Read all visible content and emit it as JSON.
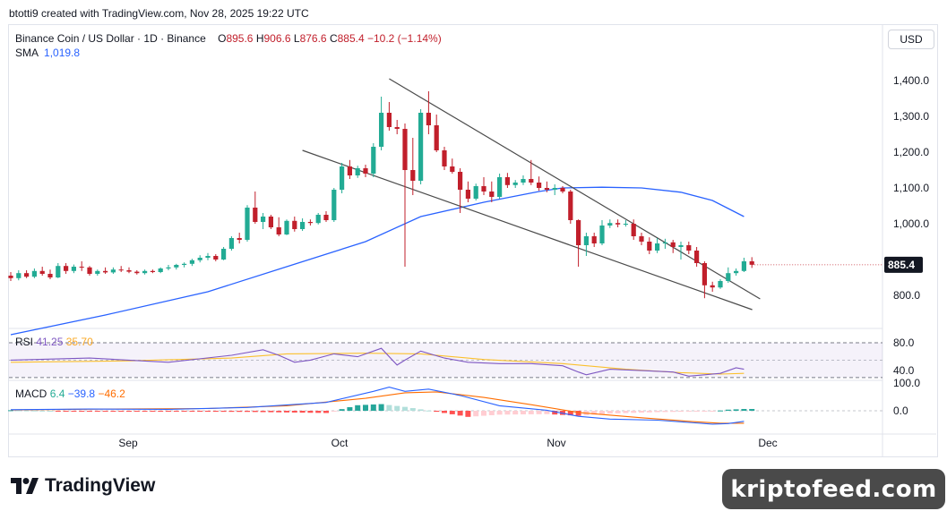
{
  "caption": "btotti9 created with TradingView.com, Nov 28, 2025 19:22 UTC",
  "legend": {
    "symbol": "Binance Coin / US Dollar · 1D · Binance",
    "o_label": "O",
    "o": "895.6",
    "h_label": "H",
    "h": "906.6",
    "l_label": "L",
    "l": "876.6",
    "c_label": "C",
    "c": "885.4",
    "change": "−10.2 (−1.14%)",
    "sma_label": "SMA",
    "sma": "1,019.8"
  },
  "currency": "USD",
  "price_tag": "885.4",
  "rsi_legend": {
    "label": "RSI",
    "rsi": "41.25",
    "ma": "35.70"
  },
  "macd_legend": {
    "label": "MACD",
    "hist": "6.4",
    "macd": "−39.8",
    "signal": "−46.2"
  },
  "brand": "TradingView",
  "watermark": "kriptofeed.com",
  "colors": {
    "up": "#22ab94",
    "down": "#c11f2b",
    "sma": "#2962ff",
    "rsi": "#7e57c2",
    "rsi_ma": "#fbc02d",
    "macd": "#2962ff",
    "signal": "#ff6d00",
    "trendline": "#4a4a4a"
  },
  "chart_data": {
    "type": "candlestick",
    "xaxis_labels": [
      "Sep",
      "Oct",
      "Nov",
      "Dec"
    ],
    "price_ticks": [
      1400,
      1300,
      1200,
      1100,
      1000,
      800
    ],
    "ylim": [
      745,
      1480
    ],
    "rsi_ticks": [
      80,
      40
    ],
    "macd_ticks": [
      100,
      0
    ],
    "candles": [
      {
        "o": 855,
        "h": 865,
        "l": 840,
        "c": 848
      },
      {
        "o": 848,
        "h": 870,
        "l": 842,
        "c": 862
      },
      {
        "o": 862,
        "h": 870,
        "l": 848,
        "c": 852
      },
      {
        "o": 852,
        "h": 875,
        "l": 848,
        "c": 868
      },
      {
        "o": 868,
        "h": 880,
        "l": 855,
        "c": 860
      },
      {
        "o": 860,
        "h": 872,
        "l": 845,
        "c": 850
      },
      {
        "o": 850,
        "h": 890,
        "l": 848,
        "c": 882
      },
      {
        "o": 882,
        "h": 890,
        "l": 860,
        "c": 868
      },
      {
        "o": 868,
        "h": 886,
        "l": 862,
        "c": 880
      },
      {
        "o": 880,
        "h": 895,
        "l": 868,
        "c": 878
      },
      {
        "o": 878,
        "h": 882,
        "l": 855,
        "c": 860
      },
      {
        "o": 860,
        "h": 872,
        "l": 855,
        "c": 868
      },
      {
        "o": 868,
        "h": 878,
        "l": 860,
        "c": 864
      },
      {
        "o": 864,
        "h": 878,
        "l": 860,
        "c": 872
      },
      {
        "o": 872,
        "h": 882,
        "l": 865,
        "c": 870
      },
      {
        "o": 870,
        "h": 878,
        "l": 862,
        "c": 866
      },
      {
        "o": 866,
        "h": 870,
        "l": 858,
        "c": 862
      },
      {
        "o": 862,
        "h": 872,
        "l": 858,
        "c": 868
      },
      {
        "o": 868,
        "h": 872,
        "l": 862,
        "c": 865
      },
      {
        "o": 865,
        "h": 878,
        "l": 862,
        "c": 875
      },
      {
        "o": 875,
        "h": 885,
        "l": 870,
        "c": 878
      },
      {
        "o": 878,
        "h": 888,
        "l": 872,
        "c": 885
      },
      {
        "o": 885,
        "h": 892,
        "l": 878,
        "c": 888
      },
      {
        "o": 888,
        "h": 902,
        "l": 882,
        "c": 898
      },
      {
        "o": 898,
        "h": 912,
        "l": 892,
        "c": 905
      },
      {
        "o": 905,
        "h": 918,
        "l": 898,
        "c": 910
      },
      {
        "o": 910,
        "h": 915,
        "l": 895,
        "c": 900
      },
      {
        "o": 900,
        "h": 935,
        "l": 898,
        "c": 930
      },
      {
        "o": 930,
        "h": 965,
        "l": 925,
        "c": 960
      },
      {
        "o": 960,
        "h": 975,
        "l": 945,
        "c": 955
      },
      {
        "o": 955,
        "h": 1052,
        "l": 950,
        "c": 1045
      },
      {
        "o": 1045,
        "h": 1090,
        "l": 1000,
        "c": 1005
      },
      {
        "o": 1005,
        "h": 1030,
        "l": 985,
        "c": 1020
      },
      {
        "o": 1020,
        "h": 1025,
        "l": 985,
        "c": 990
      },
      {
        "o": 990,
        "h": 1018,
        "l": 965,
        "c": 970
      },
      {
        "o": 970,
        "h": 1012,
        "l": 968,
        "c": 1008
      },
      {
        "o": 1008,
        "h": 1020,
        "l": 978,
        "c": 985
      },
      {
        "o": 985,
        "h": 1015,
        "l": 980,
        "c": 1005
      },
      {
        "o": 1005,
        "h": 1012,
        "l": 995,
        "c": 1002
      },
      {
        "o": 1002,
        "h": 1030,
        "l": 998,
        "c": 1025
      },
      {
        "o": 1025,
        "h": 1035,
        "l": 1005,
        "c": 1010
      },
      {
        "o": 1010,
        "h": 1100,
        "l": 1005,
        "c": 1095
      },
      {
        "o": 1095,
        "h": 1170,
        "l": 1085,
        "c": 1160
      },
      {
        "o": 1160,
        "h": 1178,
        "l": 1125,
        "c": 1135
      },
      {
        "o": 1135,
        "h": 1162,
        "l": 1128,
        "c": 1155
      },
      {
        "o": 1155,
        "h": 1165,
        "l": 1130,
        "c": 1140
      },
      {
        "o": 1140,
        "h": 1225,
        "l": 1130,
        "c": 1215
      },
      {
        "o": 1215,
        "h": 1355,
        "l": 1205,
        "c": 1310
      },
      {
        "o": 1310,
        "h": 1340,
        "l": 1260,
        "c": 1270
      },
      {
        "o": 1270,
        "h": 1290,
        "l": 1250,
        "c": 1265
      },
      {
        "o": 1265,
        "h": 1280,
        "l": 880,
        "c": 1150
      },
      {
        "o": 1150,
        "h": 1240,
        "l": 1080,
        "c": 1120
      },
      {
        "o": 1120,
        "h": 1320,
        "l": 1110,
        "c": 1310
      },
      {
        "o": 1310,
        "h": 1370,
        "l": 1250,
        "c": 1275
      },
      {
        "o": 1275,
        "h": 1305,
        "l": 1200,
        "c": 1205
      },
      {
        "o": 1205,
        "h": 1215,
        "l": 1150,
        "c": 1160
      },
      {
        "o": 1160,
        "h": 1182,
        "l": 1140,
        "c": 1145
      },
      {
        "o": 1145,
        "h": 1155,
        "l": 1030,
        "c": 1095
      },
      {
        "o": 1095,
        "h": 1118,
        "l": 1060,
        "c": 1070
      },
      {
        "o": 1070,
        "h": 1112,
        "l": 1065,
        "c": 1105
      },
      {
        "o": 1105,
        "h": 1130,
        "l": 1080,
        "c": 1090
      },
      {
        "o": 1090,
        "h": 1118,
        "l": 1060,
        "c": 1075
      },
      {
        "o": 1075,
        "h": 1140,
        "l": 1070,
        "c": 1130
      },
      {
        "o": 1130,
        "h": 1142,
        "l": 1100,
        "c": 1108
      },
      {
        "o": 1108,
        "h": 1122,
        "l": 1100,
        "c": 1115
      },
      {
        "o": 1115,
        "h": 1135,
        "l": 1108,
        "c": 1125
      },
      {
        "o": 1125,
        "h": 1178,
        "l": 1108,
        "c": 1115
      },
      {
        "o": 1115,
        "h": 1132,
        "l": 1092,
        "c": 1100
      },
      {
        "o": 1100,
        "h": 1118,
        "l": 1088,
        "c": 1095
      },
      {
        "o": 1095,
        "h": 1110,
        "l": 1080,
        "c": 1100
      },
      {
        "o": 1100,
        "h": 1105,
        "l": 1085,
        "c": 1090
      },
      {
        "o": 1090,
        "h": 1095,
        "l": 1000,
        "c": 1010
      },
      {
        "o": 1010,
        "h": 1012,
        "l": 880,
        "c": 940
      },
      {
        "o": 940,
        "h": 975,
        "l": 910,
        "c": 965
      },
      {
        "o": 965,
        "h": 975,
        "l": 935,
        "c": 945
      },
      {
        "o": 945,
        "h": 1010,
        "l": 940,
        "c": 995
      },
      {
        "o": 995,
        "h": 1012,
        "l": 988,
        "c": 1002
      },
      {
        "o": 1002,
        "h": 1012,
        "l": 990,
        "c": 998
      },
      {
        "o": 998,
        "h": 1010,
        "l": 992,
        "c": 1000
      },
      {
        "o": 1000,
        "h": 1012,
        "l": 955,
        "c": 965
      },
      {
        "o": 965,
        "h": 975,
        "l": 940,
        "c": 950
      },
      {
        "o": 950,
        "h": 962,
        "l": 915,
        "c": 925
      },
      {
        "o": 925,
        "h": 960,
        "l": 918,
        "c": 945
      },
      {
        "o": 945,
        "h": 958,
        "l": 930,
        "c": 948
      },
      {
        "o": 948,
        "h": 955,
        "l": 918,
        "c": 935
      },
      {
        "o": 935,
        "h": 950,
        "l": 900,
        "c": 940
      },
      {
        "o": 940,
        "h": 950,
        "l": 915,
        "c": 925
      },
      {
        "o": 925,
        "h": 935,
        "l": 880,
        "c": 890
      },
      {
        "o": 890,
        "h": 895,
        "l": 792,
        "c": 828
      },
      {
        "o": 828,
        "h": 838,
        "l": 810,
        "c": 822
      },
      {
        "o": 822,
        "h": 845,
        "l": 818,
        "c": 840
      },
      {
        "o": 840,
        "h": 878,
        "l": 835,
        "c": 862
      },
      {
        "o": 862,
        "h": 875,
        "l": 855,
        "c": 868
      },
      {
        "o": 868,
        "h": 905,
        "l": 865,
        "c": 895
      },
      {
        "o": 895,
        "h": 906.6,
        "l": 876.6,
        "c": 885.4
      }
    ],
    "sma": [
      {
        "i": 0,
        "v": 690
      },
      {
        "i": 12,
        "v": 745
      },
      {
        "i": 25,
        "v": 810
      },
      {
        "i": 35,
        "v": 880
      },
      {
        "i": 45,
        "v": 950
      },
      {
        "i": 52,
        "v": 1020
      },
      {
        "i": 60,
        "v": 1060
      },
      {
        "i": 67,
        "v": 1090
      },
      {
        "i": 70,
        "v": 1100
      },
      {
        "i": 75,
        "v": 1102
      },
      {
        "i": 80,
        "v": 1100
      },
      {
        "i": 85,
        "v": 1088
      },
      {
        "i": 89,
        "v": 1065
      },
      {
        "i": 93,
        "v": 1020
      }
    ],
    "trendlines": [
      {
        "i1": 48,
        "v1": 1405,
        "i2": 93,
        "v2": 808
      },
      {
        "i1": 37,
        "v1": 1205,
        "i2": 92,
        "v2": 778
      }
    ],
    "rsi": [
      {
        "i": 0,
        "v": 55
      },
      {
        "i": 10,
        "v": 58
      },
      {
        "i": 20,
        "v": 52
      },
      {
        "i": 28,
        "v": 62
      },
      {
        "i": 32,
        "v": 70
      },
      {
        "i": 34,
        "v": 62
      },
      {
        "i": 36,
        "v": 52
      },
      {
        "i": 38,
        "v": 55
      },
      {
        "i": 41,
        "v": 64
      },
      {
        "i": 44,
        "v": 60
      },
      {
        "i": 47,
        "v": 72
      },
      {
        "i": 49,
        "v": 48
      },
      {
        "i": 50,
        "v": 55
      },
      {
        "i": 52,
        "v": 68
      },
      {
        "i": 55,
        "v": 58
      },
      {
        "i": 58,
        "v": 52
      },
      {
        "i": 62,
        "v": 50
      },
      {
        "i": 66,
        "v": 50
      },
      {
        "i": 70,
        "v": 47
      },
      {
        "i": 72,
        "v": 38
      },
      {
        "i": 73,
        "v": 34
      },
      {
        "i": 76,
        "v": 42
      },
      {
        "i": 80,
        "v": 40
      },
      {
        "i": 84,
        "v": 38
      },
      {
        "i": 86,
        "v": 32
      },
      {
        "i": 88,
        "v": 34
      },
      {
        "i": 90,
        "v": 36
      },
      {
        "i": 92,
        "v": 44
      },
      {
        "i": 93,
        "v": 42
      }
    ],
    "rsi_ma": [
      {
        "i": 0,
        "v": 52
      },
      {
        "i": 15,
        "v": 54
      },
      {
        "i": 28,
        "v": 58
      },
      {
        "i": 35,
        "v": 64
      },
      {
        "i": 45,
        "v": 65
      },
      {
        "i": 52,
        "v": 64
      },
      {
        "i": 60,
        "v": 56
      },
      {
        "i": 70,
        "v": 50
      },
      {
        "i": 78,
        "v": 42
      },
      {
        "i": 85,
        "v": 37
      },
      {
        "i": 90,
        "v": 35
      },
      {
        "i": 93,
        "v": 36
      }
    ],
    "macd": [
      {
        "i": 0,
        "v": 4
      },
      {
        "i": 10,
        "v": 6
      },
      {
        "i": 20,
        "v": 5
      },
      {
        "i": 30,
        "v": 12
      },
      {
        "i": 40,
        "v": 30
      },
      {
        "i": 46,
        "v": 70
      },
      {
        "i": 48,
        "v": 85
      },
      {
        "i": 50,
        "v": 70
      },
      {
        "i": 53,
        "v": 78
      },
      {
        "i": 57,
        "v": 55
      },
      {
        "i": 62,
        "v": 18
      },
      {
        "i": 68,
        "v": 2
      },
      {
        "i": 72,
        "v": -20
      },
      {
        "i": 76,
        "v": -30
      },
      {
        "i": 82,
        "v": -34
      },
      {
        "i": 86,
        "v": -42
      },
      {
        "i": 89,
        "v": -48
      },
      {
        "i": 91,
        "v": -46
      },
      {
        "i": 93,
        "v": -38
      }
    ],
    "signal": [
      {
        "i": 0,
        "v": 3
      },
      {
        "i": 12,
        "v": 6
      },
      {
        "i": 25,
        "v": 8
      },
      {
        "i": 35,
        "v": 18
      },
      {
        "i": 45,
        "v": 45
      },
      {
        "i": 50,
        "v": 65
      },
      {
        "i": 54,
        "v": 68
      },
      {
        "i": 60,
        "v": 48
      },
      {
        "i": 66,
        "v": 22
      },
      {
        "i": 72,
        "v": -6
      },
      {
        "i": 80,
        "v": -25
      },
      {
        "i": 86,
        "v": -38
      },
      {
        "i": 90,
        "v": -45
      },
      {
        "i": 93,
        "v": -45
      }
    ],
    "macd_hist": [
      {
        "i": 0,
        "v": 2
      },
      {
        "i": 10,
        "v": -2
      },
      {
        "i": 20,
        "v": -3
      },
      {
        "i": 30,
        "v": -4
      },
      {
        "i": 40,
        "v": -8
      },
      {
        "i": 44,
        "v": 20
      },
      {
        "i": 47,
        "v": 24
      },
      {
        "i": 50,
        "v": 14
      },
      {
        "i": 55,
        "v": -8
      },
      {
        "i": 58,
        "v": -22
      },
      {
        "i": 62,
        "v": -14
      },
      {
        "i": 68,
        "v": -12
      },
      {
        "i": 72,
        "v": -18
      },
      {
        "i": 76,
        "v": -10
      },
      {
        "i": 82,
        "v": -5
      },
      {
        "i": 86,
        "v": -3
      },
      {
        "i": 89,
        "v": -2
      },
      {
        "i": 91,
        "v": 4
      },
      {
        "i": 93,
        "v": 6.4
      }
    ]
  }
}
